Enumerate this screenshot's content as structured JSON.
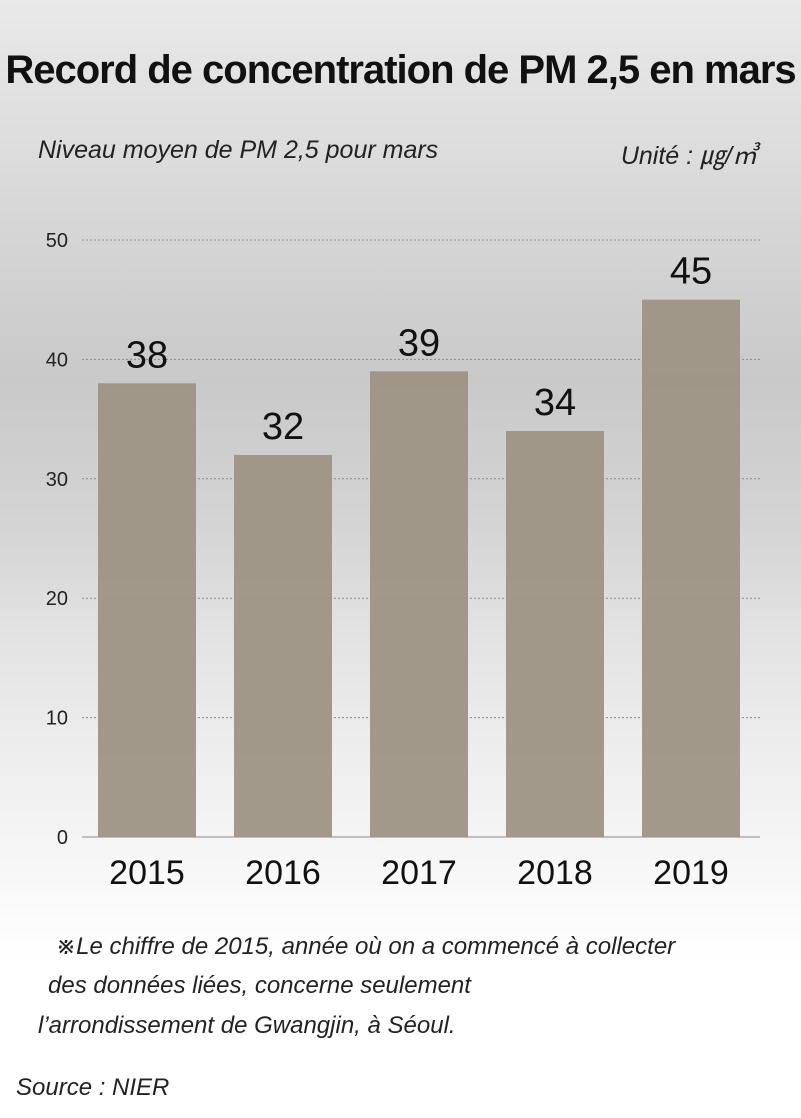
{
  "title": "Record de concentration de PM 2,5 en mars",
  "subtitle": "Niveau moyen de PM 2,5 pour mars",
  "unit": "Unité : ㎍/㎥",
  "chart_data": {
    "type": "bar",
    "title": "Record de concentration de PM 2,5 en mars",
    "subtitle": "Niveau moyen de PM 2,5 pour mars",
    "ylabel": "Unité : ㎍/㎥",
    "xlabel": "",
    "categories": [
      "2015",
      "2016",
      "2017",
      "2018",
      "2019"
    ],
    "values": [
      38,
      32,
      39,
      34,
      45
    ],
    "data_labels": [
      "38",
      "32",
      "39",
      "34",
      "45"
    ],
    "yticks": [
      "0",
      "10",
      "20",
      "30",
      "40",
      "50"
    ],
    "ylim": [
      0,
      50
    ],
    "grid": true,
    "bar_color": "#9e9484"
  },
  "notes": [
    "※Le chiffre de 2015, année où on a commencé à collecter",
    "des données liées, concerne seulement",
    "l’arrondissement de Gwangjin, à Séoul."
  ],
  "source": "Source : NIER",
  "colors": {
    "bar": "#9e9484",
    "grid": "#8a8a8a",
    "text": "#111111"
  }
}
